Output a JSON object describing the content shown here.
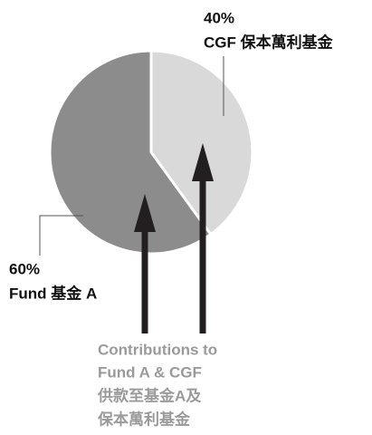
{
  "chart_data": {
    "type": "pie",
    "categories": [
      "CGF 保本萬利基金",
      "Fund 基金 A"
    ],
    "values": [
      40,
      60
    ],
    "value_labels": [
      "40%",
      "60%"
    ],
    "colors": [
      "#d9d9d9",
      "#8c8c8c"
    ],
    "annotation": [
      "Contributions to",
      "Fund A & CGF",
      "供款至基金A及",
      "保本萬利基金"
    ]
  }
}
